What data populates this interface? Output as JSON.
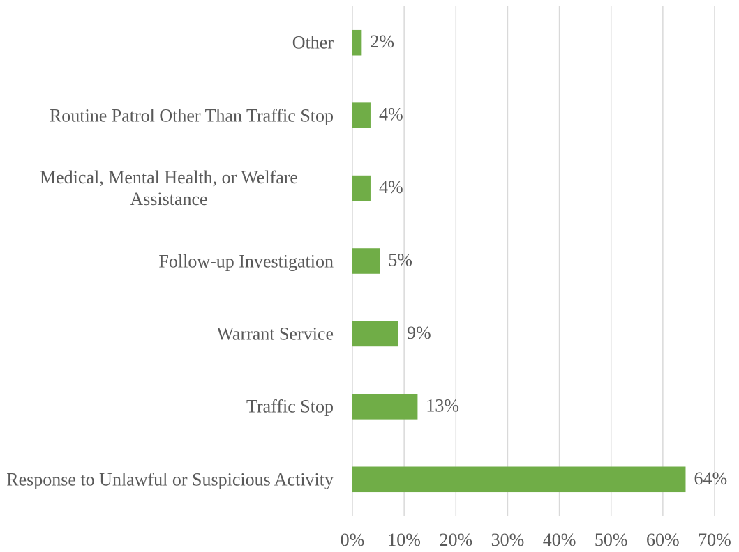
{
  "chart_data": {
    "type": "bar",
    "orientation": "horizontal",
    "categories": [
      "Other",
      "Routine Patrol Other Than Traffic Stop",
      "Medical, Mental Health, or Welfare Assistance",
      "Follow-up Investigation",
      "Warrant Service",
      "Traffic Stop",
      "Response to Unlawful or Suspicious Activity"
    ],
    "values": [
      1.8,
      3.5,
      3.5,
      5.3,
      8.9,
      12.6,
      64.4
    ],
    "value_labels": [
      "2%",
      "4%",
      "4%",
      "5%",
      "9%",
      "13%",
      "64%"
    ],
    "color": "#70ad47",
    "xlim": [
      0,
      70
    ],
    "xticks": [
      {
        "value": 0,
        "label": "0%"
      },
      {
        "value": 10,
        "label": "10%"
      },
      {
        "value": 20,
        "label": "20%"
      },
      {
        "value": 30,
        "label": "30%"
      },
      {
        "value": 40,
        "label": "40%"
      },
      {
        "value": 50,
        "label": "50%"
      },
      {
        "value": 60,
        "label": "60%"
      },
      {
        "value": 70,
        "label": "70%"
      }
    ],
    "grid": true
  }
}
